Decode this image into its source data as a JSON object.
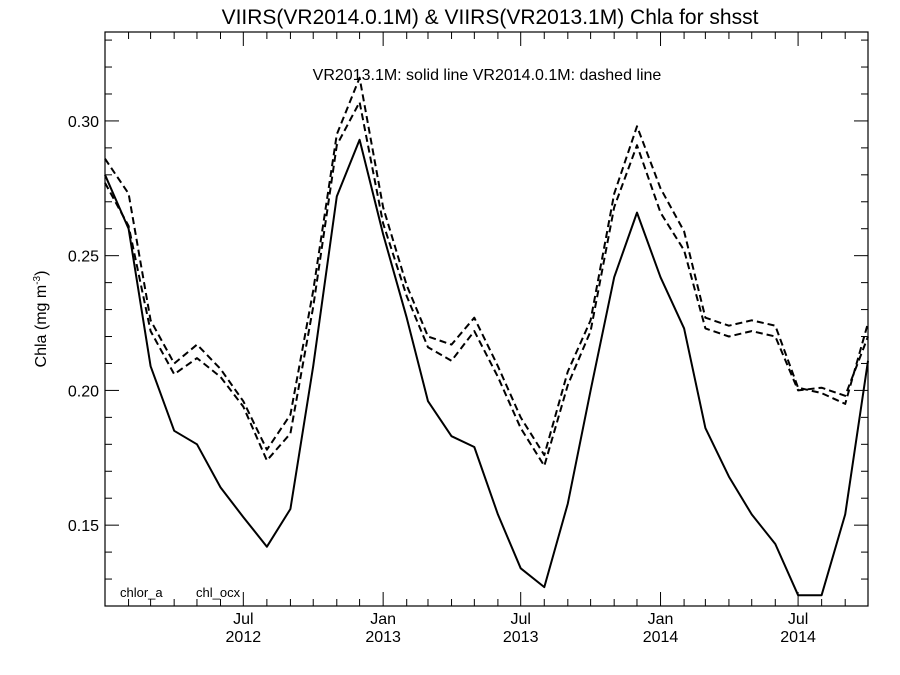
{
  "chart_data": {
    "type": "line",
    "title": "VIIRS(VR2014.0.1M) & VIIRS(VR2013.1M)  Chla for shsst",
    "annotation": "VR2013.1M: solid line   VR2014.0.1M: dashed line",
    "ylabel": "Chla (mg m",
    "ylabel_sup": "-3",
    "ylabel_close": ")",
    "xlim": [
      "2012-01-01",
      "2014-10-01"
    ],
    "ylim": [
      0.12,
      0.333
    ],
    "y_ticks": [
      0.15,
      0.2,
      0.25,
      0.3
    ],
    "y_tick_labels": [
      "0.15",
      "0.20",
      "0.25",
      "0.30"
    ],
    "y_minor_step": 0.01,
    "x_ticks": [
      {
        "date": "2012-07-01",
        "label": [
          "Jul",
          "2012"
        ]
      },
      {
        "date": "2013-01-01",
        "label": [
          "Jan",
          "2013"
        ]
      },
      {
        "date": "2013-07-01",
        "label": [
          "Jul",
          "2013"
        ]
      },
      {
        "date": "2014-01-01",
        "label": [
          "Jan",
          "2014"
        ]
      },
      {
        "date": "2014-07-01",
        "label": [
          "Jul",
          "2014"
        ]
      }
    ],
    "x_minor": "monthly",
    "legend_labels": [
      "chlor_a",
      "chl_ocx"
    ],
    "grid": false,
    "x": [
      "2012-01-01",
      "2012-02-01",
      "2012-03-01",
      "2012-04-01",
      "2012-05-01",
      "2012-06-01",
      "2012-07-01",
      "2012-08-01",
      "2012-09-01",
      "2012-10-01",
      "2012-11-01",
      "2012-12-01",
      "2013-01-01",
      "2013-02-01",
      "2013-03-01",
      "2013-04-01",
      "2013-05-01",
      "2013-06-01",
      "2013-07-01",
      "2013-08-01",
      "2013-09-01",
      "2013-10-01",
      "2013-11-01",
      "2013-12-01",
      "2014-01-01",
      "2014-02-01",
      "2014-03-01",
      "2014-04-01",
      "2014-05-01",
      "2014-06-01",
      "2014-07-01",
      "2014-08-01",
      "2014-09-01",
      "2014-10-01"
    ],
    "series": [
      {
        "style": "solid",
        "values": [
          0.28,
          0.26,
          0.209,
          0.185,
          0.18,
          0.164,
          0.153,
          0.142,
          0.156,
          0.209,
          0.272,
          0.293,
          0.258,
          0.227,
          0.196,
          0.183,
          0.179,
          0.154,
          0.134,
          0.127,
          0.158,
          0.2,
          0.242,
          0.266,
          0.242,
          0.223,
          0.186,
          0.168,
          0.154,
          0.143,
          0.124,
          0.124,
          0.154,
          0.211
        ]
      },
      {
        "style": "dashed",
        "values": [
          0.277,
          0.261,
          0.222,
          0.206,
          0.212,
          0.205,
          0.194,
          0.174,
          0.184,
          0.231,
          0.291,
          0.307,
          0.262,
          0.235,
          0.216,
          0.211,
          0.222,
          0.205,
          0.186,
          0.172,
          0.202,
          0.222,
          0.268,
          0.291,
          0.266,
          0.252,
          0.223,
          0.22,
          0.222,
          0.22,
          0.2,
          0.201,
          0.198,
          0.22
        ]
      },
      {
        "style": "dashed",
        "values": [
          0.286,
          0.273,
          0.226,
          0.21,
          0.217,
          0.208,
          0.196,
          0.178,
          0.191,
          0.237,
          0.295,
          0.316,
          0.268,
          0.239,
          0.22,
          0.217,
          0.227,
          0.209,
          0.19,
          0.176,
          0.207,
          0.226,
          0.273,
          0.298,
          0.275,
          0.259,
          0.227,
          0.224,
          0.226,
          0.224,
          0.201,
          0.199,
          0.195,
          0.225
        ]
      }
    ]
  }
}
